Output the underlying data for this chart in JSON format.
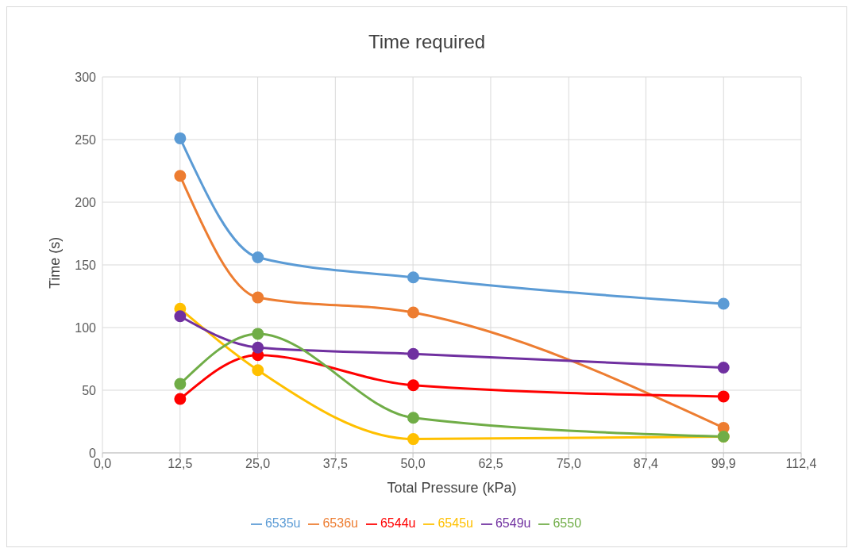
{
  "chart_data": {
    "type": "line",
    "title": "Time required",
    "xlabel": "Total Pressure (kPa)",
    "ylabel": "Time (s)",
    "x": [
      12.5,
      25,
      50,
      99.9
    ],
    "series": [
      {
        "name": "6535u",
        "color": "#5b9bd5",
        "values": [
          251,
          156,
          140,
          119
        ]
      },
      {
        "name": "6536u",
        "color": "#ed7d31",
        "values": [
          221,
          124,
          112,
          20
        ]
      },
      {
        "name": "6544u",
        "color": "#ff0000",
        "values": [
          43,
          78,
          54,
          45
        ]
      },
      {
        "name": "6545u",
        "color": "#ffc000",
        "values": [
          115,
          66,
          11,
          13
        ]
      },
      {
        "name": "6549u",
        "color": "#7030a0",
        "values": [
          109,
          84,
          79,
          68
        ]
      },
      {
        "name": "6550",
        "color": "#70ad47",
        "values": [
          55,
          95,
          28,
          13
        ]
      }
    ],
    "xlim": [
      0,
      112.39
    ],
    "xticks": [
      {
        "value": 0,
        "label": "0,0"
      },
      {
        "value": 12.49,
        "label": "12,5"
      },
      {
        "value": 24.98,
        "label": "25,0"
      },
      {
        "value": 37.46,
        "label": "37,5"
      },
      {
        "value": 49.95,
        "label": "50,0"
      },
      {
        "value": 62.45,
        "label": "62,5"
      },
      {
        "value": 75,
        "label": "75,0"
      },
      {
        "value": 87.41,
        "label": "87,4"
      },
      {
        "value": 99.9,
        "label": "99,9"
      },
      {
        "value": 112.39,
        "label": "112,4"
      }
    ],
    "ylim": [
      0,
      300
    ],
    "yticks": [
      0,
      50,
      100,
      150,
      200,
      250,
      300
    ],
    "grid": true,
    "legend": "bottom",
    "marker": "circle",
    "line_style": "solid"
  }
}
